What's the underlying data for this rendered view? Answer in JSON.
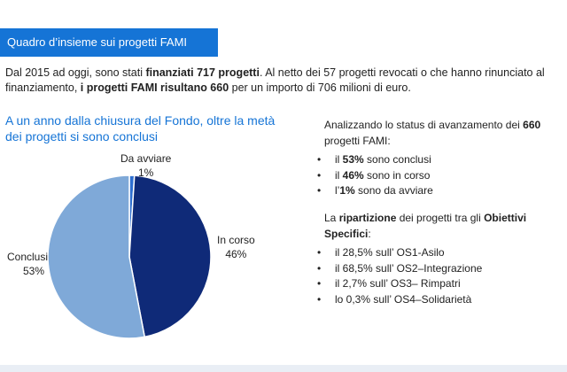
{
  "header": {
    "title": "Quadro d’insieme sui progetti FAMI"
  },
  "intro": {
    "p1": "Dal 2015 ad oggi, sono stati ",
    "b1": "finanziati 717 progetti",
    "p2": ". Al netto dei 57 progetti revocati o che hanno rinunciato al finanziamento, ",
    "b2": "i progetti FAMI risultano 660",
    "p3": " per un importo di 706 milioni di euro."
  },
  "left_title": "A un anno dalla chiusura del Fondo, oltre la metà dei progetti si sono conclusi",
  "chart_data": {
    "type": "pie",
    "title": "",
    "slices": [
      {
        "label": "Da avviare",
        "value": 1,
        "display": "1%",
        "color": "#2e6fd0"
      },
      {
        "label": "In corso",
        "value": 46,
        "display": "46%",
        "color": "#0f2a78"
      },
      {
        "label": "Conclusi",
        "value": 53,
        "display": "53%",
        "color": "#7fa9d8"
      }
    ]
  },
  "status": {
    "title_pre": "Analizzando lo status di avanzamento dei ",
    "title_num": "660",
    "title_post": " progetti FAMI:",
    "items": [
      {
        "pre": "il ",
        "bold": "53%",
        "post": " sono conclusi"
      },
      {
        "pre": "il ",
        "bold": "46%",
        "post": " sono in corso"
      },
      {
        "pre": "l’",
        "bold": "1%",
        "post": " sono da avviare"
      }
    ]
  },
  "ripartizione": {
    "title_pre": "La ",
    "title_b1": "ripartizione",
    "title_mid": " dei progetti tra gli ",
    "title_b2": "Obiettivi Specifici",
    "title_post": ":",
    "items": [
      "il 28,5% sull’ OS1-Asilo",
      "il 68,5% sull’ OS2–Integrazione",
      " il  2,7%  sull’  OS3–  Rimpatri",
      "lo 0,3%  sull’ OS4–Solidarietà"
    ]
  },
  "colors": {
    "accent": "#1574d6",
    "in_corso": "#0f2a78",
    "conclusi": "#7fa9d8",
    "da_avviare": "#2e6fd0"
  }
}
